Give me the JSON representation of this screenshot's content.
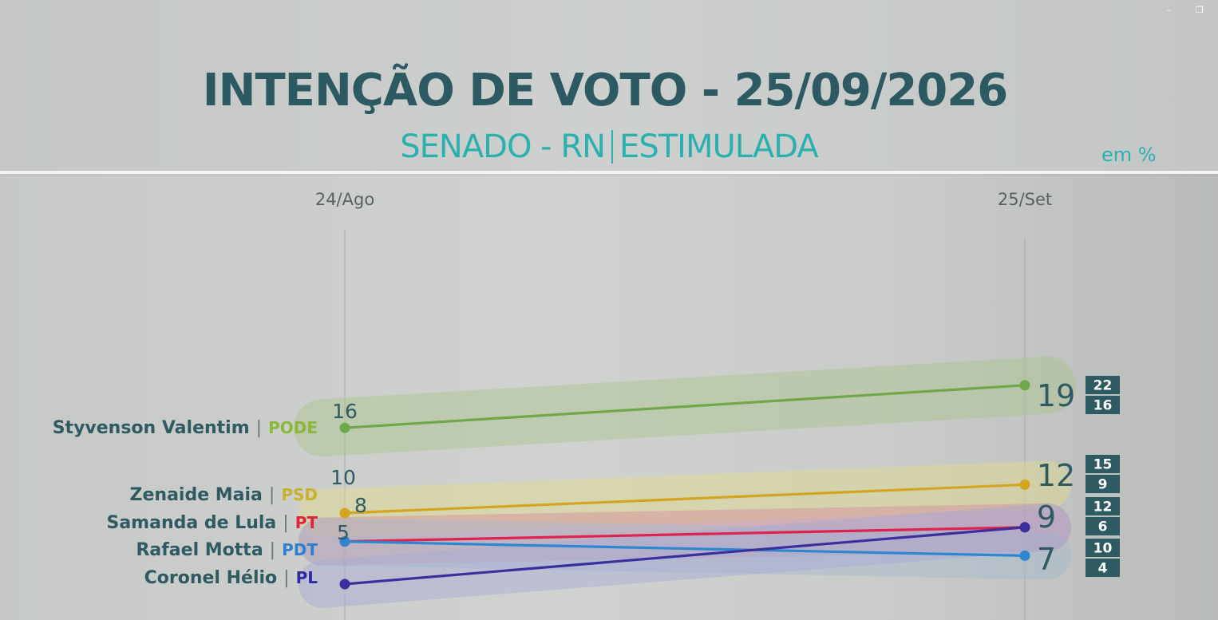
{
  "title": "INTENÇÃO DE VOTO - 25/09/2026",
  "subtitle_left": "SENADO - RN",
  "subtitle_right": "ESTIMULADA",
  "unit": "em %",
  "window_controls": {
    "minimize": "–",
    "restore": "❐"
  },
  "chart_data": {
    "type": "line",
    "x": [
      "24/Ago",
      "25/Set"
    ],
    "series": [
      {
        "name": "Styvenson Valentim",
        "party": "PODE",
        "color": "#6fa84a",
        "party_color": "#8cb83a",
        "band_color": "#a9c38a",
        "values": [
          16,
          19
        ],
        "range": [
          22,
          16
        ]
      },
      {
        "name": "Zenaide Maia",
        "party": "PSD",
        "color": "#d4a520",
        "party_color": "#c9b12b",
        "band_color": "#e2dc8a",
        "values": [
          10,
          12
        ],
        "range": [
          15,
          9
        ]
      },
      {
        "name": "Samanda de Lula",
        "party": "PT",
        "color": "#e0234e",
        "party_color": "#e0233a",
        "band_color": "#d88a9c",
        "values": [
          8,
          9
        ],
        "range": [
          12,
          6
        ]
      },
      {
        "name": "Rafael Motta",
        "party": "PDT",
        "color": "#2f86d0",
        "party_color": "#2f7fd1",
        "band_color": "#a3b9cf",
        "values": [
          8,
          7
        ],
        "range": [
          10,
          4
        ]
      },
      {
        "name": "Coronel Hélio",
        "party": "PL",
        "color": "#3b2f9e",
        "party_color": "#2e2aa0",
        "band_color": "#a6a8d4",
        "values": [
          5,
          9
        ],
        "range": null
      }
    ],
    "end_labels": [
      "19",
      "12",
      "9",
      "7"
    ],
    "start_labels": [
      "16",
      "10",
      "8",
      "5"
    ],
    "grid": false,
    "legend": "left"
  }
}
